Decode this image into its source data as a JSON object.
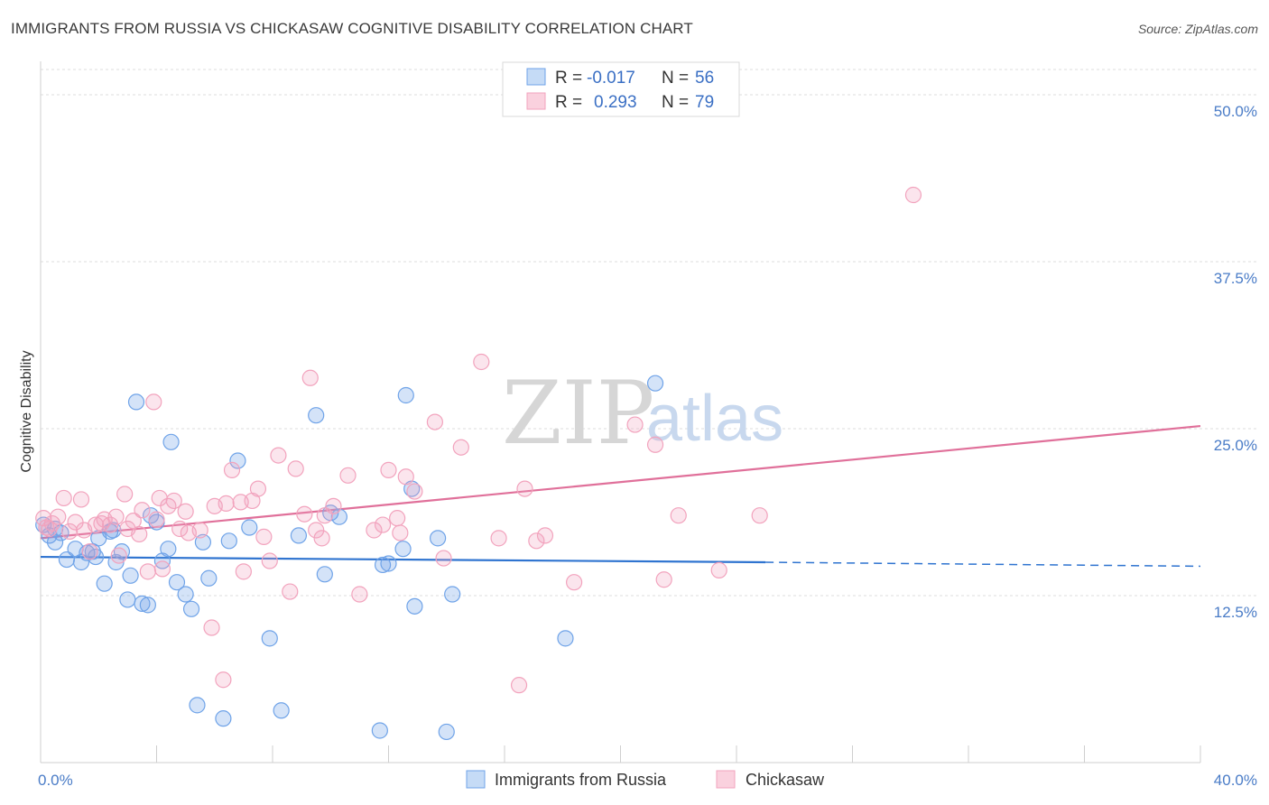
{
  "title": "IMMIGRANTS FROM RUSSIA VS CHICKASAW COGNITIVE DISABILITY CORRELATION CHART",
  "source": "Source: ZipAtlas.com",
  "watermark": {
    "zip": "ZIP",
    "atlas": "atlas"
  },
  "legend": {
    "rows": [
      {
        "r_label": "R =",
        "r_value": "-0.017",
        "n_label": "N =",
        "n_value": "56"
      },
      {
        "r_label": "R =",
        "r_value": "0.293",
        "n_label": "N =",
        "n_value": "79"
      }
    ]
  },
  "bottom_legend": [
    "Immigrants from Russia",
    "Chickasaw"
  ],
  "chart_data": {
    "type": "scatter",
    "title": "IMMIGRANTS FROM RUSSIA VS CHICKASAW COGNITIVE DISABILITY CORRELATION CHART",
    "xlabel": "",
    "ylabel": "Cognitive Disability",
    "xlim": [
      0,
      40
    ],
    "ylim": [
      0,
      52.5
    ],
    "x_tick_labels": [
      "0.0%",
      "40.0%"
    ],
    "y_ticks": [
      12.5,
      25.0,
      37.5,
      50.0
    ],
    "y_tick_labels": [
      "12.5%",
      "25.0%",
      "37.5%",
      "50.0%"
    ],
    "grid": true,
    "legend_position": "top-center",
    "colors": {
      "russia": "#6fa3e8",
      "chickasaw": "#f2a3bd",
      "russia_line": "#2f74d0",
      "chickasaw_line": "#e0709a"
    },
    "series": [
      {
        "name": "Immigrants from Russia",
        "r": -0.017,
        "n": 56,
        "trend": {
          "x": [
            0,
            25,
            40
          ],
          "y": [
            15.4,
            15.0,
            14.7
          ],
          "solid_until": 25
        },
        "points": [
          [
            0.1,
            17.8
          ],
          [
            0.3,
            17.0
          ],
          [
            0.5,
            16.5
          ],
          [
            0.7,
            17.2
          ],
          [
            0.9,
            15.2
          ],
          [
            1.2,
            16.0
          ],
          [
            1.4,
            15.0
          ],
          [
            1.6,
            15.7
          ],
          [
            1.8,
            15.8
          ],
          [
            1.9,
            15.4
          ],
          [
            2.0,
            16.8
          ],
          [
            2.2,
            13.4
          ],
          [
            2.4,
            17.3
          ],
          [
            2.5,
            17.4
          ],
          [
            2.6,
            15.0
          ],
          [
            2.8,
            15.8
          ],
          [
            3.0,
            12.2
          ],
          [
            3.1,
            14.0
          ],
          [
            3.3,
            27.0
          ],
          [
            3.5,
            11.9
          ],
          [
            3.7,
            11.8
          ],
          [
            3.8,
            18.5
          ],
          [
            4.0,
            18.0
          ],
          [
            4.2,
            15.1
          ],
          [
            4.4,
            16.0
          ],
          [
            4.5,
            24.0
          ],
          [
            4.7,
            13.5
          ],
          [
            5.0,
            12.6
          ],
          [
            5.2,
            11.5
          ],
          [
            5.4,
            4.3
          ],
          [
            5.6,
            16.5
          ],
          [
            5.8,
            13.8
          ],
          [
            6.3,
            3.3
          ],
          [
            6.5,
            16.6
          ],
          [
            6.8,
            22.6
          ],
          [
            7.2,
            17.6
          ],
          [
            7.9,
            9.3
          ],
          [
            8.3,
            3.9
          ],
          [
            8.9,
            17.0
          ],
          [
            9.5,
            26.0
          ],
          [
            9.8,
            14.1
          ],
          [
            10.0,
            18.7
          ],
          [
            10.3,
            18.4
          ],
          [
            11.7,
            2.4
          ],
          [
            11.8,
            14.8
          ],
          [
            12.0,
            14.9
          ],
          [
            12.5,
            16.0
          ],
          [
            12.6,
            27.5
          ],
          [
            12.8,
            20.5
          ],
          [
            12.9,
            11.7
          ],
          [
            13.7,
            16.8
          ],
          [
            14.2,
            12.6
          ],
          [
            14.0,
            2.3
          ],
          [
            18.1,
            9.3
          ],
          [
            21.2,
            28.4
          ],
          [
            0.5,
            17.5
          ]
        ]
      },
      {
        "name": "Chickasaw",
        "r": 0.293,
        "n": 79,
        "trend": {
          "x": [
            0,
            40
          ],
          "y": [
            16.8,
            25.2
          ]
        },
        "points": [
          [
            0.1,
            18.3
          ],
          [
            0.3,
            17.5
          ],
          [
            0.4,
            17.9
          ],
          [
            0.6,
            18.4
          ],
          [
            0.8,
            19.8
          ],
          [
            1.0,
            17.3
          ],
          [
            1.2,
            18.0
          ],
          [
            1.4,
            19.7
          ],
          [
            1.7,
            15.8
          ],
          [
            1.9,
            17.8
          ],
          [
            2.1,
            17.9
          ],
          [
            2.2,
            18.2
          ],
          [
            2.4,
            17.8
          ],
          [
            2.6,
            18.4
          ],
          [
            2.7,
            15.5
          ],
          [
            2.9,
            20.1
          ],
          [
            3.0,
            17.5
          ],
          [
            3.2,
            18.1
          ],
          [
            3.4,
            17.1
          ],
          [
            3.5,
            18.9
          ],
          [
            3.7,
            14.3
          ],
          [
            3.9,
            27.0
          ],
          [
            4.0,
            18.2
          ],
          [
            4.2,
            14.5
          ],
          [
            4.4,
            19.2
          ],
          [
            4.6,
            19.6
          ],
          [
            4.8,
            17.5
          ],
          [
            5.0,
            18.8
          ],
          [
            5.1,
            17.2
          ],
          [
            5.5,
            17.4
          ],
          [
            5.9,
            10.1
          ],
          [
            6.0,
            19.2
          ],
          [
            6.4,
            19.4
          ],
          [
            6.6,
            21.9
          ],
          [
            6.9,
            19.5
          ],
          [
            7.0,
            14.3
          ],
          [
            7.3,
            19.6
          ],
          [
            7.5,
            20.5
          ],
          [
            7.7,
            16.9
          ],
          [
            7.9,
            15.1
          ],
          [
            8.2,
            23.0
          ],
          [
            8.6,
            12.8
          ],
          [
            8.8,
            22.0
          ],
          [
            9.1,
            18.6
          ],
          [
            9.3,
            28.8
          ],
          [
            9.5,
            17.4
          ],
          [
            9.8,
            18.5
          ],
          [
            10.1,
            19.2
          ],
          [
            10.6,
            21.5
          ],
          [
            11.0,
            12.6
          ],
          [
            11.5,
            17.4
          ],
          [
            11.8,
            17.8
          ],
          [
            12.0,
            21.9
          ],
          [
            12.3,
            18.3
          ],
          [
            12.6,
            21.4
          ],
          [
            12.9,
            20.3
          ],
          [
            13.6,
            25.5
          ],
          [
            13.9,
            15.3
          ],
          [
            14.5,
            23.6
          ],
          [
            15.2,
            30.0
          ],
          [
            15.8,
            16.8
          ],
          [
            16.5,
            5.8
          ],
          [
            16.7,
            20.5
          ],
          [
            17.1,
            16.6
          ],
          [
            17.4,
            17.0
          ],
          [
            18.4,
            13.5
          ],
          [
            20.5,
            25.3
          ],
          [
            21.2,
            23.8
          ],
          [
            21.5,
            13.7
          ],
          [
            22.0,
            18.5
          ],
          [
            23.4,
            14.4
          ],
          [
            24.8,
            18.5
          ],
          [
            30.1,
            42.5
          ],
          [
            6.3,
            6.2
          ],
          [
            4.1,
            19.8
          ],
          [
            9.7,
            16.8
          ],
          [
            1.5,
            17.4
          ],
          [
            12.4,
            17.2
          ],
          [
            0.2,
            17.6
          ]
        ]
      }
    ]
  }
}
